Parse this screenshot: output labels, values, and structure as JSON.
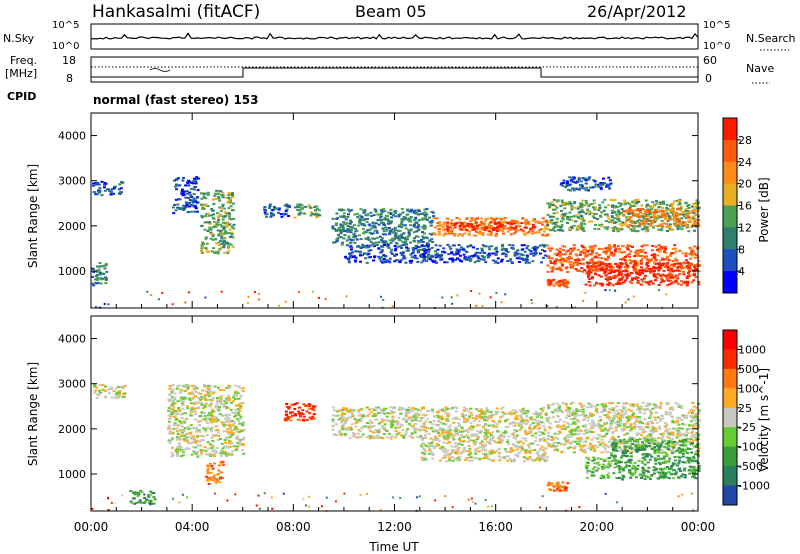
{
  "header": {
    "station": "Hankasalmi (fitACF)",
    "beam": "Beam 05",
    "date": "26/Apr/2012"
  },
  "strip": {
    "nsky_label": "N.Sky",
    "nsky_ticks": [
      "10^5",
      "10^0"
    ],
    "nsearch_label": "N.Search",
    "nsearch_ticks": [
      "10^5",
      "10^0"
    ],
    "freq_label_1": "Freq.",
    "freq_label_2": "[MHz]",
    "freq_ticks": [
      "18",
      "8"
    ],
    "nave_label": "Nave",
    "nave_ticks": [
      "60",
      "0"
    ],
    "cpid_label": "CPID",
    "cpid_value": "normal (fast stereo) 153"
  },
  "chart_data": [
    {
      "type": "heatmap",
      "name": "power",
      "ylabel": "Slant Range [km]",
      "yticks": [
        "4000",
        "3000",
        "2000",
        "1000"
      ],
      "ylim": [
        180,
        4500
      ],
      "colorbar_label": "Power [dB]",
      "colorbar_ticks": [
        "28",
        "24",
        "20",
        "16",
        "12",
        "8",
        "4"
      ],
      "colorbar_colors": [
        "#0000ff",
        "#1e4fc0",
        "#2e7f6d",
        "#4aa054",
        "#e8b020",
        "#ff8a1a",
        "#ff5a10",
        "#ff1a00"
      ],
      "bands": [
        {
          "x0": 0.0,
          "x1": 0.6,
          "r0": 700,
          "r1": 1200,
          "level": 2
        },
        {
          "x0": 0.0,
          "x1": 1.2,
          "r0": 2700,
          "r1": 3000,
          "level": 1
        },
        {
          "x0": 3.2,
          "x1": 4.2,
          "r0": 2300,
          "r1": 3100,
          "level": 1
        },
        {
          "x0": 4.3,
          "x1": 5.6,
          "r0": 1400,
          "r1": 2800,
          "level": 3
        },
        {
          "x0": 6.8,
          "x1": 7.8,
          "r0": 2200,
          "r1": 2500,
          "level": 1
        },
        {
          "x0": 8.0,
          "x1": 9.0,
          "r0": 2200,
          "r1": 2500,
          "level": 3
        },
        {
          "x0": 9.5,
          "x1": 13.5,
          "r0": 1600,
          "r1": 2400,
          "level": 2
        },
        {
          "x0": 10.0,
          "x1": 18.0,
          "r0": 1200,
          "r1": 1600,
          "level": 1
        },
        {
          "x0": 13.5,
          "x1": 18.0,
          "r0": 1800,
          "r1": 2200,
          "level": 5
        },
        {
          "x0": 14.0,
          "x1": 17.5,
          "r0": 1900,
          "r1": 2100,
          "level": 7
        },
        {
          "x0": 18.0,
          "x1": 24.0,
          "r0": 1000,
          "r1": 1600,
          "level": 6
        },
        {
          "x0": 19.5,
          "x1": 24.0,
          "r0": 700,
          "r1": 1200,
          "level": 7
        },
        {
          "x0": 18.0,
          "x1": 24.0,
          "r0": 1900,
          "r1": 2600,
          "level": 3
        },
        {
          "x0": 21.0,
          "x1": 24.0,
          "r0": 2000,
          "r1": 2400,
          "level": 5
        },
        {
          "x0": 18.5,
          "x1": 20.5,
          "r0": 2800,
          "r1": 3100,
          "level": 1
        },
        {
          "x0": 18.0,
          "x1": 18.8,
          "r0": 650,
          "r1": 850,
          "level": 6
        }
      ]
    },
    {
      "type": "heatmap",
      "name": "velocity",
      "ylabel": "Slant Range [km]",
      "yticks": [
        "4000",
        "3000",
        "2000",
        "1000"
      ],
      "ylim": [
        180,
        4500
      ],
      "colorbar_label": "Velocity [m s^-1]",
      "colorbar_ticks": [
        "1000",
        "500",
        "100",
        "25",
        "-25",
        "-100",
        "-500",
        "-1000"
      ],
      "colorbar_colors": [
        "#1e48a8",
        "#2a7f5f",
        "#3a9e3a",
        "#66cc33",
        "#c8c8c0",
        "#ffaa22",
        "#ff7a10",
        "#ff2a00",
        "#ff0000"
      ],
      "bands": [
        {
          "x0": 0.0,
          "x1": 1.3,
          "r0": 2700,
          "r1": 3000,
          "level": 4
        },
        {
          "x0": 3.0,
          "x1": 6.0,
          "r0": 1400,
          "r1": 3000,
          "level": 4
        },
        {
          "x0": 7.6,
          "x1": 8.8,
          "r0": 2200,
          "r1": 2600,
          "level": 7
        },
        {
          "x0": 9.5,
          "x1": 18.0,
          "r0": 1800,
          "r1": 2500,
          "level": 4
        },
        {
          "x0": 13.0,
          "x1": 18.0,
          "r0": 1300,
          "r1": 1800,
          "level": 4
        },
        {
          "x0": 18.0,
          "x1": 24.0,
          "r0": 1500,
          "r1": 2600,
          "level": 4
        },
        {
          "x0": 19.5,
          "x1": 20.5,
          "r0": 900,
          "r1": 1400,
          "level": 3
        },
        {
          "x0": 20.5,
          "x1": 24.0,
          "r0": 900,
          "r1": 1800,
          "level": 2
        },
        {
          "x0": 18.0,
          "x1": 18.8,
          "r0": 650,
          "r1": 850,
          "level": 6
        },
        {
          "x0": 4.5,
          "x1": 5.2,
          "r0": 800,
          "r1": 1300,
          "level": 6
        },
        {
          "x0": 1.5,
          "x1": 2.5,
          "r0": 350,
          "r1": 650,
          "level": 2
        }
      ]
    }
  ],
  "xaxis": {
    "ticks": [
      "00:00",
      "04:00",
      "08:00",
      "12:00",
      "16:00",
      "20:00",
      "00:00"
    ],
    "label": "Time UT"
  }
}
